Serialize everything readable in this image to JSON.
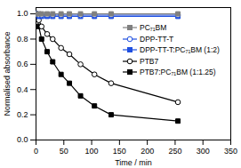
{
  "chart_data": {
    "type": "line",
    "x_label": "Time / min",
    "y_label": "Normalised absorbance",
    "x": [
      0,
      5,
      10,
      20,
      30,
      45,
      60,
      80,
      105,
      135,
      255
    ],
    "xlim": [
      0,
      350
    ],
    "xticks": [
      0,
      50,
      100,
      150,
      200,
      250,
      300,
      350
    ],
    "ylim": [
      0,
      1.05
    ],
    "yticks": [
      {
        "value": 0,
        "label": "0.0"
      },
      {
        "value": 0.2,
        "label": "0.2"
      },
      {
        "value": 0.4,
        "label": "0.4"
      },
      {
        "value": 0.6,
        "label": "0.6"
      },
      {
        "value": 0.8,
        "label": "0.8"
      },
      {
        "value": 1,
        "label": "1.0"
      }
    ],
    "legend": "right",
    "series": [
      {
        "name": "PC₇₁BM",
        "color": "#808080",
        "marker": "square",
        "values": [
          1.0,
          1.0,
          1.0,
          1.0,
          1.0,
          1.0,
          1.0,
          1.0,
          1.0,
          1.0,
          1.0
        ]
      },
      {
        "name": "DPP-TT-T",
        "color": "#1f4fe0",
        "marker": "open-circle",
        "values": [
          1.0,
          0.99,
          0.99,
          0.99,
          0.99,
          0.99,
          0.99,
          0.99,
          0.99,
          0.99,
          0.99
        ]
      },
      {
        "name": "DPP-TT-T:PC₇₁BM (1:2)",
        "color": "#1f4fe0",
        "marker": "square",
        "values": [
          1.0,
          0.98,
          0.98,
          0.98,
          0.98,
          0.98,
          0.98,
          0.98,
          0.98,
          0.98,
          0.98
        ]
      },
      {
        "name": "PTB7",
        "color": "#000000",
        "marker": "open-circle",
        "values": [
          1.0,
          0.95,
          0.9,
          0.84,
          0.8,
          0.73,
          0.68,
          0.6,
          0.52,
          0.45,
          0.3
        ]
      },
      {
        "name": "PTB7:PC₇₁BM (1:1.25)",
        "color": "#000000",
        "marker": "square",
        "values": [
          1.0,
          0.9,
          0.8,
          0.7,
          0.62,
          0.52,
          0.45,
          0.35,
          0.27,
          0.2,
          0.15
        ]
      }
    ]
  }
}
